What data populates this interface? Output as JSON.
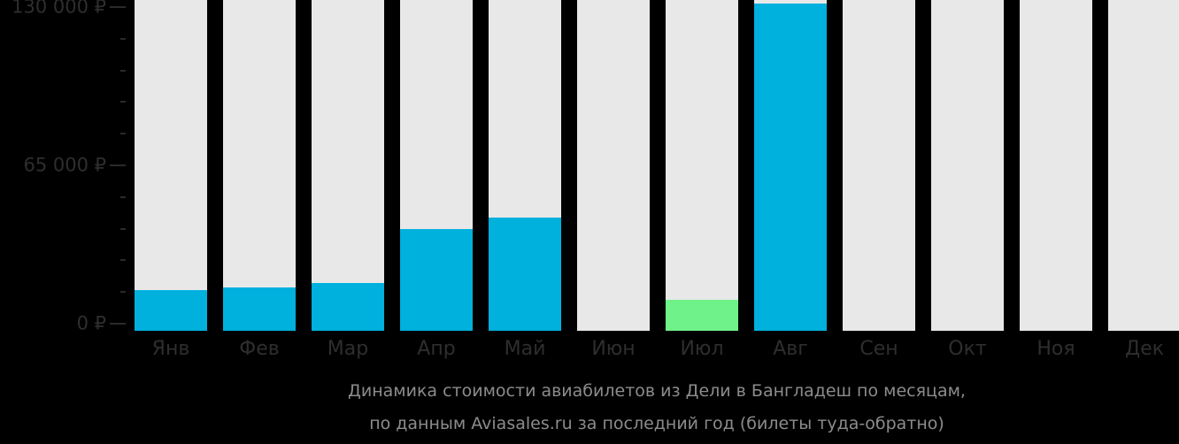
{
  "chart_data": {
    "type": "bar",
    "title": "Динамика стоимости авиабилетов из Дели в Бангладеш по месяцам,",
    "subtitle": "по данным Aviasales.ru за последний год (билеты туда-обратно)",
    "xlabel": "",
    "ylabel": "",
    "ylim": [
      0,
      130000
    ],
    "yticks": [
      {
        "value": 0,
        "label": "0 ₽"
      },
      {
        "value": 65000,
        "label": "65 000 ₽"
      },
      {
        "value": 130000,
        "label": "130 000 ₽"
      }
    ],
    "minor_tick_step": 13000,
    "grid": false,
    "legend": null,
    "categories": [
      "Янв",
      "Фев",
      "Мар",
      "Апр",
      "Май",
      "Июн",
      "Июл",
      "Авг",
      "Сен",
      "Окт",
      "Ноя",
      "Дек"
    ],
    "values": [
      13800,
      14900,
      16700,
      38900,
      43600,
      null,
      9800,
      131500,
      null,
      null,
      null,
      null
    ],
    "bar_colors": [
      "#00b0dd",
      "#00b0dd",
      "#00b0dd",
      "#00b0dd",
      "#00b0dd",
      null,
      "#6ff28a",
      "#00b0dd",
      null,
      null,
      null,
      null
    ],
    "highlight": {
      "category": "Июл",
      "meaning": "cheapest month",
      "color": "#6ff28a"
    }
  },
  "colors": {
    "background": "#000000",
    "bar_track": "#e8e8e8",
    "bar_default": "#00b0dd",
    "bar_cheapest": "#6ff28a",
    "axis_text": "#2e2e2e",
    "caption_text": "#8c8c8c"
  }
}
